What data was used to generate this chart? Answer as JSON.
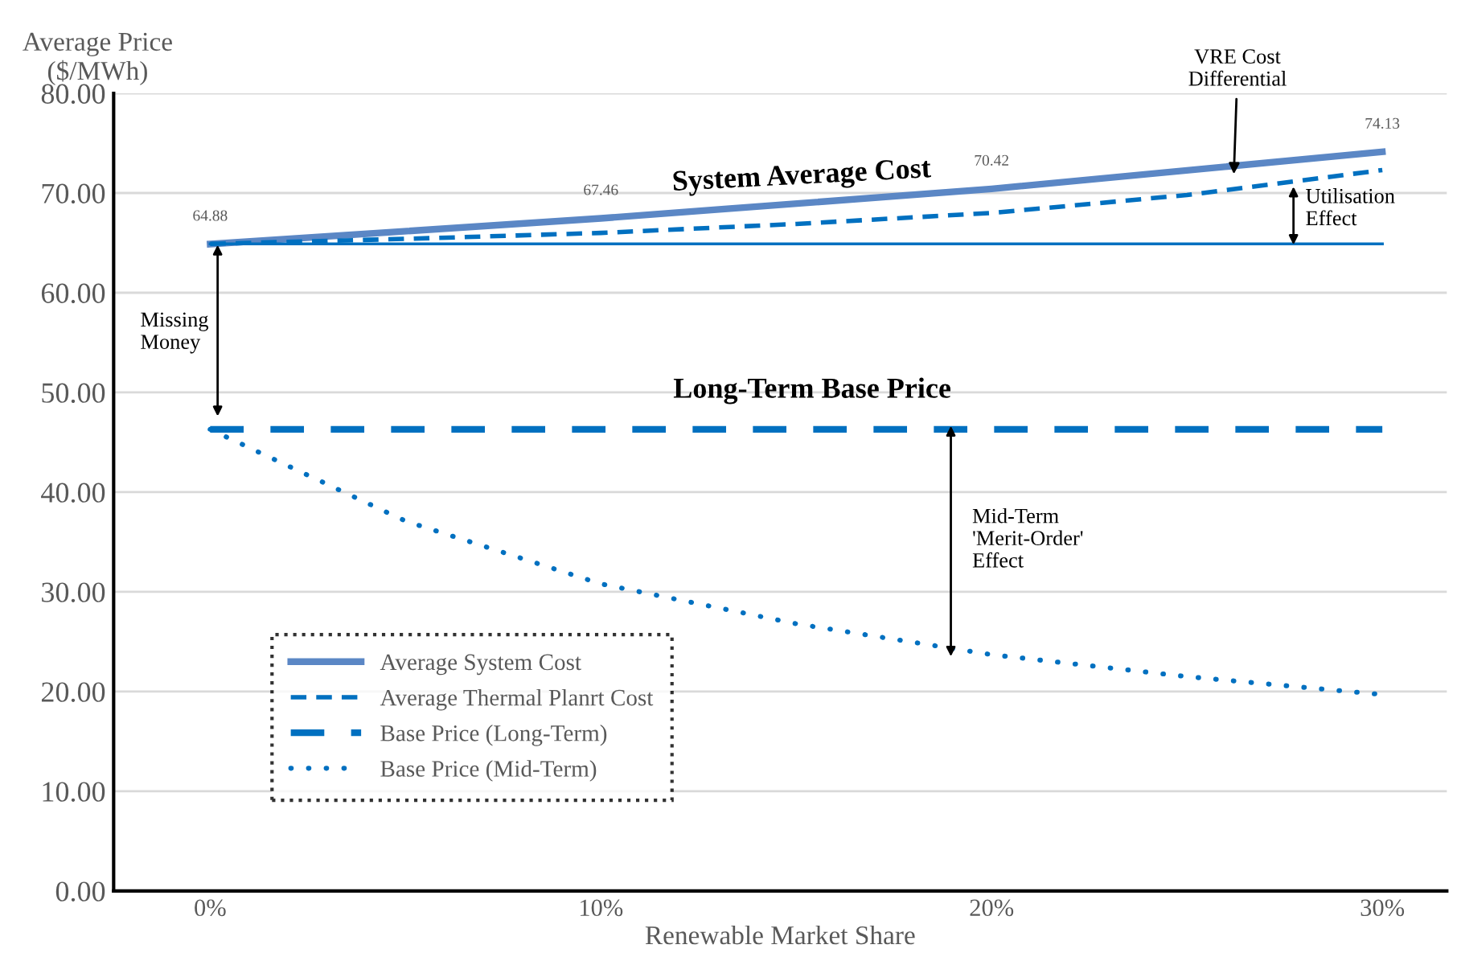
{
  "chart_data": {
    "type": "line",
    "xlabel": "Renewable Market Share",
    "ylabel": "Average Price\n($/MWh)",
    "xlim": [
      -2.47,
      31.65
    ],
    "xticks": [
      {
        "value": 0,
        "label": "0%"
      },
      {
        "value": 10,
        "label": "10%"
      },
      {
        "value": 20,
        "label": "20%"
      },
      {
        "value": 30,
        "label": "30%"
      }
    ],
    "ylim": [
      0,
      80
    ],
    "yticks": [
      {
        "value": 0,
        "label": "0.00"
      },
      {
        "value": 10,
        "label": "10.00"
      },
      {
        "value": 20,
        "label": "20.00"
      },
      {
        "value": 30,
        "label": "30.00"
      },
      {
        "value": 40,
        "label": "40.00"
      },
      {
        "value": 50,
        "label": "50.00"
      },
      {
        "value": 60,
        "label": "60.00"
      },
      {
        "value": 70,
        "label": "70.00"
      },
      {
        "value": 80,
        "label": "80.00"
      }
    ],
    "grid": "y",
    "legend": "bottom left",
    "marker": "none",
    "series": [
      {
        "name": "Average System Cost",
        "color": "#5b87c5",
        "line_style": "solid",
        "x": [
          0,
          10,
          20,
          30
        ],
        "values": [
          64.88,
          67.46,
          70.42,
          74.13
        ],
        "value_labels": [
          "64.88",
          "67.46",
          "70.42",
          "74.13"
        ]
      },
      {
        "name": "Average Thermal Planrt Cost",
        "color": "#0070c0",
        "line_style": "dashed",
        "x": [
          0,
          5,
          10,
          15,
          20,
          25,
          30
        ],
        "values": [
          64.9,
          65.4,
          66.0,
          66.9,
          68.0,
          69.8,
          72.3
        ]
      },
      {
        "name": "Base Price (Long-Term)",
        "color": "#0070c0",
        "line_style": "dashed",
        "x": [
          0,
          30
        ],
        "values": [
          46.3,
          46.3
        ]
      },
      {
        "name": "Base Price (Mid-Term)",
        "color": "#0070c0",
        "line_style": "dotted",
        "x": [
          0,
          5,
          10,
          15,
          20,
          25,
          30
        ],
        "values": [
          46.3,
          37.1,
          30.8,
          26.8,
          23.7,
          21.5,
          19.7
        ]
      },
      {
        "color": "#0070c0",
        "line_style": "solid",
        "x": [
          0,
          30
        ],
        "values": [
          64.9,
          64.9
        ]
      }
    ],
    "annotations": [
      "System Average Cost",
      "Long-Term Base Price",
      "Missing\nMoney",
      "Mid-Term\n'Merit-Order'\nEffect",
      "Utilisation\nEffect",
      {
        "text": "VRE Cost\nDifferential",
        "x": 26.2,
        "y": 71.9
      }
    ]
  }
}
